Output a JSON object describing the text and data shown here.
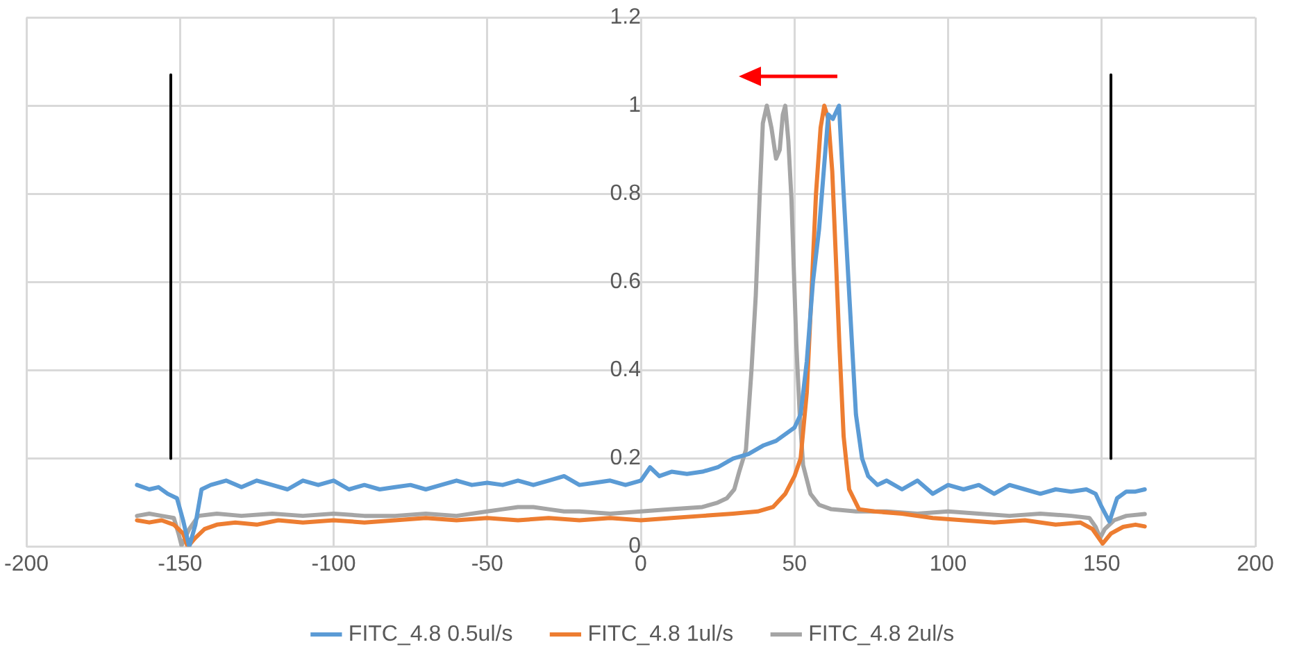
{
  "chart_data": {
    "type": "line",
    "xlim": [
      -200,
      200
    ],
    "xticks": [
      -200,
      -150,
      -100,
      -50,
      0,
      50,
      100,
      150,
      200
    ],
    "ylim": [
      0,
      1.2
    ],
    "yticks": [
      0,
      0.2,
      0.4,
      0.6,
      0.8,
      1,
      1.2
    ],
    "grid": true,
    "legend": "bottom",
    "marker": "none",
    "line_style": "solid",
    "series": [
      {
        "name": "FITC_4.8 0.5ul/s",
        "color": "#5b9bd5",
        "x": [
          -164,
          -160,
          -157,
          -154,
          -151,
          -149,
          -147,
          -145,
          -143,
          -140,
          -135,
          -130,
          -125,
          -120,
          -115,
          -110,
          -105,
          -100,
          -95,
          -90,
          -85,
          -80,
          -75,
          -70,
          -65,
          -60,
          -55,
          -50,
          -45,
          -40,
          -35,
          -30,
          -25,
          -20,
          -15,
          -10,
          -5,
          0,
          3,
          6,
          10,
          15,
          20,
          25,
          30,
          35,
          40,
          44,
          48,
          50,
          52,
          54,
          56,
          58,
          59.5,
          61,
          62.5,
          64.5,
          66,
          68,
          70,
          72,
          74,
          77,
          80,
          85,
          90,
          95,
          100,
          105,
          110,
          115,
          120,
          125,
          130,
          135,
          140,
          145,
          148,
          150,
          152.5,
          155,
          158,
          161,
          164
        ],
        "values": [
          0.14,
          0.13,
          0.135,
          0.12,
          0.11,
          0.06,
          0.0,
          0.05,
          0.13,
          0.14,
          0.15,
          0.135,
          0.15,
          0.14,
          0.13,
          0.15,
          0.14,
          0.15,
          0.13,
          0.14,
          0.13,
          0.135,
          0.14,
          0.13,
          0.14,
          0.15,
          0.14,
          0.145,
          0.14,
          0.15,
          0.14,
          0.15,
          0.16,
          0.14,
          0.145,
          0.15,
          0.14,
          0.15,
          0.18,
          0.16,
          0.17,
          0.165,
          0.17,
          0.18,
          0.2,
          0.21,
          0.23,
          0.24,
          0.26,
          0.27,
          0.3,
          0.42,
          0.6,
          0.72,
          0.85,
          0.98,
          0.97,
          1.0,
          0.8,
          0.55,
          0.3,
          0.2,
          0.16,
          0.14,
          0.15,
          0.13,
          0.15,
          0.12,
          0.14,
          0.13,
          0.14,
          0.12,
          0.14,
          0.13,
          0.12,
          0.13,
          0.125,
          0.13,
          0.12,
          0.09,
          0.057,
          0.11,
          0.125,
          0.125,
          0.13
        ]
      },
      {
        "name": "FITC_4.8 1ul/s",
        "color": "#ed7d31",
        "x": [
          -164,
          -160,
          -156,
          -152,
          -149,
          -147.5,
          -145,
          -142,
          -138,
          -132,
          -125,
          -118,
          -110,
          -100,
          -90,
          -80,
          -70,
          -60,
          -50,
          -40,
          -30,
          -20,
          -10,
          0,
          10,
          20,
          30,
          38,
          43,
          47,
          50,
          52,
          54,
          55.5,
          57,
          58.5,
          59.7,
          61,
          62.3,
          63.5,
          64.6,
          66,
          67.8,
          71,
          76,
          85,
          95,
          105,
          115,
          125,
          135,
          143,
          147,
          150.3,
          153,
          157,
          161,
          164
        ],
        "values": [
          0.06,
          0.055,
          0.06,
          0.05,
          0.03,
          0.0,
          0.02,
          0.04,
          0.05,
          0.055,
          0.05,
          0.06,
          0.055,
          0.06,
          0.055,
          0.06,
          0.065,
          0.06,
          0.065,
          0.06,
          0.065,
          0.06,
          0.065,
          0.06,
          0.065,
          0.07,
          0.075,
          0.08,
          0.09,
          0.12,
          0.16,
          0.2,
          0.35,
          0.57,
          0.8,
          0.95,
          1.0,
          0.97,
          0.85,
          0.65,
          0.46,
          0.25,
          0.13,
          0.085,
          0.08,
          0.075,
          0.065,
          0.06,
          0.055,
          0.06,
          0.05,
          0.055,
          0.04,
          0.007,
          0.03,
          0.045,
          0.05,
          0.046
        ]
      },
      {
        "name": "FITC_4.8 2ul/s",
        "color": "#a5a5a5",
        "x": [
          -164,
          -160,
          -156,
          -152,
          -150.5,
          -149.5,
          -147,
          -144,
          -138,
          -130,
          -120,
          -110,
          -100,
          -90,
          -80,
          -70,
          -60,
          -50,
          -45,
          -40,
          -35,
          -30,
          -25,
          -20,
          -10,
          0,
          10,
          20,
          25,
          28,
          30.4,
          32,
          34.2,
          36,
          37.4,
          38.7,
          39.7,
          41,
          42.5,
          44,
          45.2,
          46.2,
          47,
          48,
          49,
          50.6,
          51.7,
          52.8,
          55.2,
          58,
          62,
          70,
          80,
          90,
          100,
          110,
          120,
          130,
          140,
          146,
          148,
          149.5,
          151,
          154,
          158,
          164
        ],
        "values": [
          0.07,
          0.075,
          0.07,
          0.065,
          0.03,
          0.003,
          0.04,
          0.07,
          0.075,
          0.07,
          0.075,
          0.07,
          0.075,
          0.07,
          0.07,
          0.075,
          0.07,
          0.08,
          0.085,
          0.09,
          0.09,
          0.085,
          0.08,
          0.08,
          0.075,
          0.08,
          0.085,
          0.09,
          0.1,
          0.11,
          0.13,
          0.17,
          0.22,
          0.4,
          0.57,
          0.8,
          0.96,
          1.0,
          0.95,
          0.88,
          0.9,
          0.98,
          1.0,
          0.92,
          0.79,
          0.46,
          0.3,
          0.185,
          0.12,
          0.095,
          0.085,
          0.08,
          0.08,
          0.075,
          0.08,
          0.075,
          0.07,
          0.075,
          0.07,
          0.065,
          0.045,
          0.02,
          0.04,
          0.06,
          0.07,
          0.074
        ]
      },
      {
        "color": "#000000",
        "x": [
          -153,
          -153
        ],
        "values": [
          0.2,
          1.07
        ]
      },
      {
        "color": "#000000",
        "x": [
          153,
          153
        ],
        "values": [
          0.2,
          1.07
        ]
      }
    ]
  }
}
